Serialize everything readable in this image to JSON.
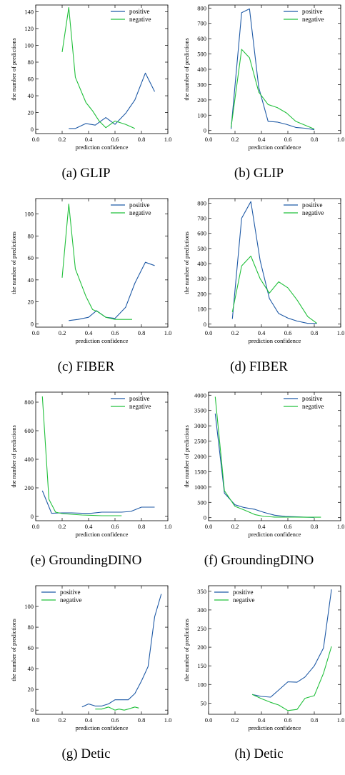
{
  "colors": {
    "positive": "#1f5aa6",
    "negative": "#22c03c",
    "axis": "#000000"
  },
  "chart_data": [
    {
      "type": "line",
      "caption": "(a)  GLIP",
      "xlabel": "prediction confidence",
      "ylabel": "the number of predictions",
      "xlim": [
        0.0,
        1.0
      ],
      "ylim": [
        -5,
        148
      ],
      "xticks": [
        0.0,
        0.2,
        0.4,
        0.6,
        0.8,
        1.0
      ],
      "yticks": [
        0,
        20,
        40,
        60,
        80,
        100,
        120,
        140
      ],
      "legend": "top-right",
      "series": [
        {
          "name": "positive",
          "x": [
            0.25,
            0.3,
            0.38,
            0.45,
            0.53,
            0.6,
            0.68,
            0.75,
            0.83,
            0.9
          ],
          "y": [
            1,
            1,
            7,
            5,
            14,
            6,
            19,
            35,
            67,
            45
          ]
        },
        {
          "name": "negative",
          "x": [
            0.2,
            0.25,
            0.3,
            0.38,
            0.43,
            0.48,
            0.53,
            0.6,
            0.68,
            0.75
          ],
          "y": [
            92,
            145,
            62,
            32,
            22,
            10,
            2,
            10,
            6,
            1
          ]
        }
      ]
    },
    {
      "type": "line",
      "caption": "(b)  GLIP",
      "xlabel": "prediction confidence",
      "ylabel": "the number of predictions",
      "xlim": [
        0.0,
        1.0
      ],
      "ylim": [
        -20,
        820
      ],
      "xticks": [
        0.0,
        0.2,
        0.4,
        0.6,
        0.8,
        1.0
      ],
      "yticks": [
        0,
        100,
        200,
        300,
        400,
        500,
        600,
        700,
        800
      ],
      "legend": "top-right",
      "series": [
        {
          "name": "positive",
          "x": [
            0.17,
            0.25,
            0.31,
            0.38,
            0.45,
            0.52,
            0.59,
            0.66,
            0.73,
            0.8
          ],
          "y": [
            10,
            770,
            795,
            280,
            60,
            55,
            40,
            20,
            15,
            5
          ]
        },
        {
          "name": "negative",
          "x": [
            0.17,
            0.25,
            0.31,
            0.38,
            0.45,
            0.52,
            0.59,
            0.66,
            0.73,
            0.8
          ],
          "y": [
            20,
            530,
            475,
            250,
            170,
            150,
            115,
            60,
            35,
            10
          ]
        }
      ]
    },
    {
      "type": "line",
      "caption": "(c)  FIBER",
      "xlabel": "prediction confidence",
      "ylabel": "the number of predictions",
      "xlim": [
        0.0,
        1.0
      ],
      "ylim": [
        -3,
        114
      ],
      "xticks": [
        0.0,
        0.2,
        0.4,
        0.6,
        0.8,
        1.0
      ],
      "yticks": [
        0,
        20,
        40,
        60,
        80,
        100
      ],
      "legend": "top-right",
      "series": [
        {
          "name": "positive",
          "x": [
            0.25,
            0.32,
            0.4,
            0.46,
            0.53,
            0.6,
            0.68,
            0.75,
            0.83,
            0.9
          ],
          "y": [
            3,
            4,
            6,
            12,
            6,
            5,
            15,
            37,
            56,
            53
          ]
        },
        {
          "name": "negative",
          "x": [
            0.2,
            0.25,
            0.3,
            0.38,
            0.43,
            0.47,
            0.53,
            0.6,
            0.68,
            0.73
          ],
          "y": [
            42,
            109,
            50,
            25,
            13,
            11,
            6,
            4,
            4,
            4
          ]
        }
      ]
    },
    {
      "type": "line",
      "caption": "(d)  FIBER",
      "xlabel": "prediction confidence",
      "ylabel": "the number of predictions",
      "xlim": [
        0.0,
        1.0
      ],
      "ylim": [
        -20,
        830
      ],
      "xticks": [
        0.0,
        0.2,
        0.4,
        0.6,
        0.8,
        1.0
      ],
      "yticks": [
        0,
        100,
        200,
        300,
        400,
        500,
        600,
        700,
        800
      ],
      "legend": "top-right",
      "series": [
        {
          "name": "positive",
          "x": [
            0.18,
            0.25,
            0.32,
            0.39,
            0.46,
            0.53,
            0.6,
            0.67,
            0.75,
            0.82
          ],
          "y": [
            35,
            700,
            810,
            420,
            170,
            70,
            40,
            20,
            5,
            5
          ]
        },
        {
          "name": "negative",
          "x": [
            0.18,
            0.25,
            0.32,
            0.39,
            0.46,
            0.53,
            0.6,
            0.67,
            0.75,
            0.82
          ],
          "y": [
            80,
            385,
            450,
            300,
            205,
            280,
            240,
            160,
            50,
            5
          ]
        }
      ]
    },
    {
      "type": "line",
      "caption": "(e)  GroundingDINO",
      "xlabel": "prediction confidence",
      "ylabel": "the number of predictions",
      "xlim": [
        0.0,
        1.0
      ],
      "ylim": [
        -30,
        870
      ],
      "xticks": [
        0.0,
        0.2,
        0.4,
        0.6,
        0.8,
        1.0
      ],
      "yticks": [
        0,
        200,
        400,
        600,
        800
      ],
      "legend": "top-right",
      "series": [
        {
          "name": "positive",
          "x": [
            0.05,
            0.12,
            0.2,
            0.27,
            0.35,
            0.42,
            0.5,
            0.58,
            0.65,
            0.72,
            0.8,
            0.9
          ],
          "y": [
            180,
            22,
            25,
            25,
            22,
            22,
            30,
            30,
            30,
            35,
            65,
            65
          ]
        },
        {
          "name": "negative",
          "x": [
            0.05,
            0.1,
            0.15,
            0.2,
            0.27,
            0.35,
            0.42,
            0.5,
            0.58,
            0.65
          ],
          "y": [
            840,
            120,
            30,
            20,
            15,
            10,
            8,
            5,
            5,
            5
          ]
        }
      ]
    },
    {
      "type": "line",
      "caption": "(f)  GroundingDINO",
      "xlabel": "prediction confidence",
      "ylabel": "the number of predictions",
      "xlim": [
        0.0,
        1.0
      ],
      "ylim": [
        -100,
        4100
      ],
      "xticks": [
        0.0,
        0.2,
        0.4,
        0.6,
        0.8,
        1.0
      ],
      "yticks": [
        0,
        500,
        1000,
        1500,
        2000,
        2500,
        3000,
        3500,
        4000
      ],
      "legend": "top-right",
      "series": [
        {
          "name": "positive",
          "x": [
            0.05,
            0.12,
            0.2,
            0.27,
            0.35,
            0.42,
            0.5,
            0.58,
            0.65,
            0.72,
            0.8
          ],
          "y": [
            3400,
            800,
            420,
            330,
            270,
            170,
            80,
            40,
            30,
            20,
            10
          ]
        },
        {
          "name": "negative",
          "x": [
            0.05,
            0.12,
            0.2,
            0.27,
            0.35,
            0.42,
            0.5,
            0.58,
            0.65,
            0.72,
            0.8,
            0.85
          ],
          "y": [
            3950,
            880,
            370,
            250,
            100,
            40,
            20,
            20,
            20,
            15,
            15,
            15
          ]
        }
      ]
    },
    {
      "type": "line",
      "caption": "(g)  Detic",
      "xlabel": "prediction confidence",
      "ylabel": "the number of predictions",
      "xlim": [
        0.0,
        1.0
      ],
      "ylim": [
        -4,
        120
      ],
      "xticks": [
        0.0,
        0.2,
        0.4,
        0.6,
        0.8,
        1.0
      ],
      "yticks": [
        0,
        20,
        40,
        60,
        80,
        100
      ],
      "legend": "top-left",
      "series": [
        {
          "name": "positive",
          "x": [
            0.35,
            0.4,
            0.45,
            0.5,
            0.55,
            0.6,
            0.65,
            0.7,
            0.75,
            0.8,
            0.85,
            0.9,
            0.95
          ],
          "y": [
            3,
            6,
            4,
            4,
            6,
            10,
            10,
            10,
            16,
            28,
            42,
            90,
            112
          ]
        },
        {
          "name": "negative",
          "x": [
            0.45,
            0.5,
            0.55,
            0.6,
            0.63,
            0.67,
            0.7,
            0.75,
            0.78
          ],
          "y": [
            1,
            1,
            3,
            0,
            1,
            0,
            1,
            3,
            2
          ]
        }
      ]
    },
    {
      "type": "line",
      "caption": "(h)  Detic",
      "xlabel": "prediction confidence",
      "ylabel": "the number of predictions",
      "xlim": [
        0.0,
        1.0
      ],
      "ylim": [
        20,
        365
      ],
      "xticks": [
        0.0,
        0.2,
        0.4,
        0.6,
        0.8,
        1.0
      ],
      "yticks": [
        50,
        100,
        150,
        200,
        250,
        300,
        350
      ],
      "legend": "top-left",
      "series": [
        {
          "name": "positive",
          "x": [
            0.33,
            0.4,
            0.47,
            0.53,
            0.6,
            0.67,
            0.73,
            0.8,
            0.87,
            0.93
          ],
          "y": [
            73,
            68,
            66,
            85,
            107,
            106,
            120,
            150,
            198,
            355
          ]
        },
        {
          "name": "negative",
          "x": [
            0.33,
            0.4,
            0.47,
            0.53,
            0.6,
            0.67,
            0.73,
            0.8,
            0.87,
            0.93
          ],
          "y": [
            73,
            62,
            52,
            45,
            30,
            33,
            63,
            70,
            130,
            202
          ]
        }
      ]
    }
  ]
}
